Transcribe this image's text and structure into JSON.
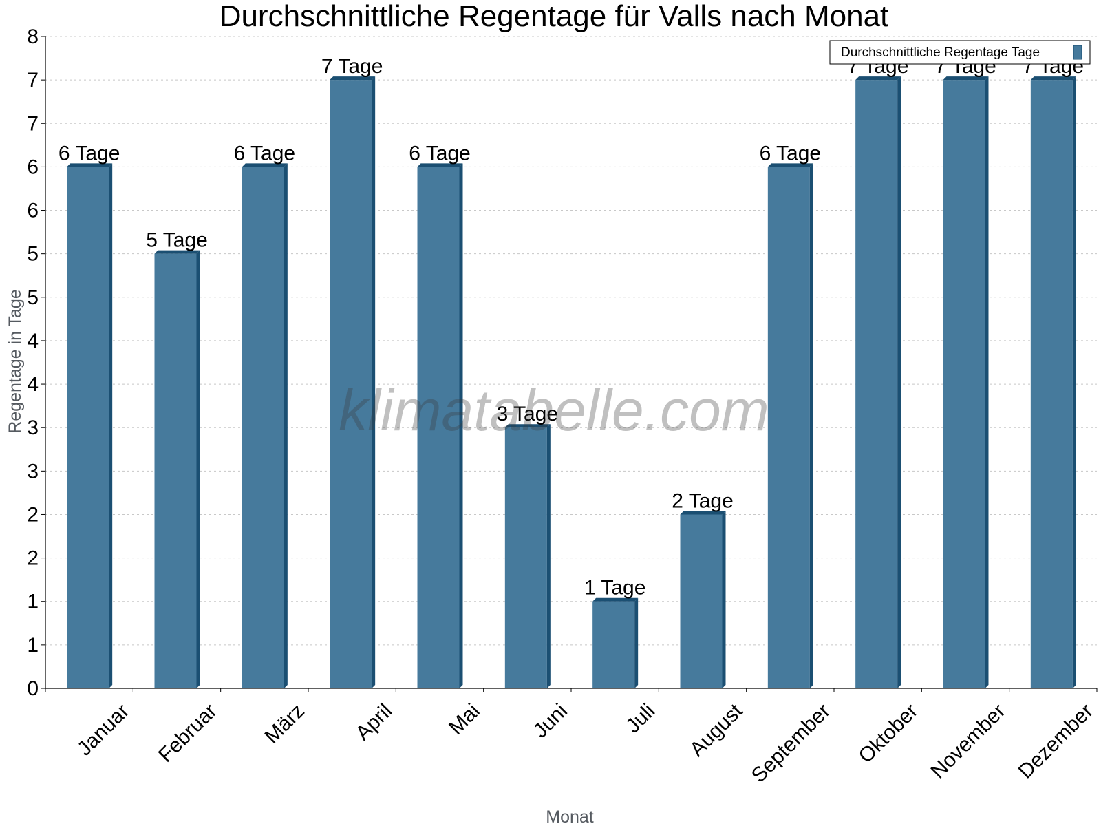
{
  "chart_data": {
    "type": "bar",
    "title": "Durchschnittliche Regentage für Valls nach Monat",
    "xlabel": "Monat",
    "ylabel": "Regentage in Tage",
    "categories": [
      "Januar",
      "Februar",
      "März",
      "April",
      "Mai",
      "Juni",
      "Juli",
      "August",
      "September",
      "Oktober",
      "November",
      "Dezember"
    ],
    "series": [
      {
        "name": "Durchschnittliche Regentage Tage",
        "values": [
          6,
          5,
          6,
          7,
          6,
          3,
          1,
          2,
          6,
          7,
          7,
          7
        ],
        "data_labels": [
          "6 Tage",
          "5 Tage",
          "6 Tage",
          "7 Tage",
          "6 Tage",
          "3 Tage",
          "1 Tage",
          "2 Tage",
          "6 Tage",
          "7 Tage",
          "7 Tage",
          "7 Tage"
        ]
      }
    ],
    "ylim": [
      0,
      7.5
    ],
    "y_ticks": [
      {
        "value": 0,
        "label": "0"
      },
      {
        "value": 0.5,
        "label": "1"
      },
      {
        "value": 1,
        "label": "1"
      },
      {
        "value": 1.5,
        "label": "2"
      },
      {
        "value": 2,
        "label": "2"
      },
      {
        "value": 2.5,
        "label": "3"
      },
      {
        "value": 3,
        "label": "3"
      },
      {
        "value": 3.5,
        "label": "4"
      },
      {
        "value": 4,
        "label": "4"
      },
      {
        "value": 4.5,
        "label": "5"
      },
      {
        "value": 5,
        "label": "5"
      },
      {
        "value": 5.5,
        "label": "6"
      },
      {
        "value": 6,
        "label": "6"
      },
      {
        "value": 6.5,
        "label": "7"
      },
      {
        "value": 7,
        "label": "7"
      },
      {
        "value": 7.5,
        "label": "8"
      }
    ],
    "grid": true,
    "legend": "top-right",
    "watermark": "klimatabelle.com",
    "colors": {
      "bar_front": "#467a9c",
      "bar_side": "#1b4f72",
      "bar_top": "#1b4f72",
      "grid": "#c8c8c8",
      "axis": "#000000"
    }
  }
}
